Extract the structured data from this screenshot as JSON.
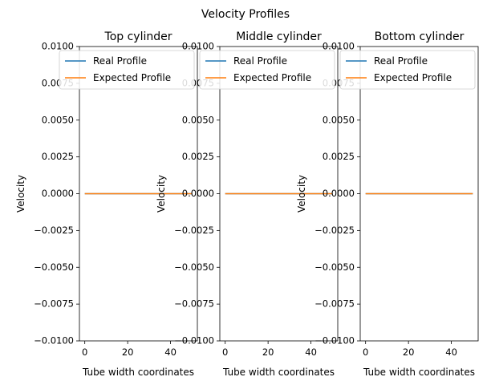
{
  "figure": {
    "suptitle": "Velocity Profiles"
  },
  "chart_data": [
    {
      "type": "line",
      "title": "Top cylinder",
      "xlabel": "Tube width coordinates",
      "ylabel": "Velocity",
      "xlim": [
        -2.5,
        52.5
      ],
      "ylim": [
        -0.01,
        0.01
      ],
      "xticks": [
        0,
        20,
        40
      ],
      "yticks": [
        -0.01,
        -0.0075,
        -0.005,
        -0.0025,
        0.0,
        0.0025,
        0.005,
        0.0075,
        0.01
      ],
      "ytick_labels": [
        "−0.0100",
        "−0.0075",
        "−0.0050",
        "−0.0025",
        "0.0000",
        "0.0025",
        "0.0050",
        "0.0075",
        "0.0100"
      ],
      "legend": "top-right",
      "series": [
        {
          "name": "Real Profile",
          "color": "#1f77b4",
          "x": [
            0,
            50
          ],
          "y": [
            0,
            0
          ]
        },
        {
          "name": "Expected Profile",
          "color": "#ff7f0e",
          "x": [
            0,
            50
          ],
          "y": [
            0,
            0
          ]
        }
      ]
    },
    {
      "type": "line",
      "title": "Middle cylinder",
      "xlabel": "Tube width coordinates",
      "ylabel": "Velocity",
      "xlim": [
        -2.5,
        52.5
      ],
      "ylim": [
        -0.01,
        0.01
      ],
      "xticks": [
        0,
        20,
        40
      ],
      "yticks": [
        -0.01,
        -0.0075,
        -0.005,
        -0.0025,
        0.0,
        0.0025,
        0.005,
        0.0075,
        0.01
      ],
      "ytick_labels": [
        "−0.0100",
        "−0.0075",
        "−0.0050",
        "−0.0025",
        "0.0000",
        "0.0025",
        "0.0050",
        "0.0075",
        "0.0100"
      ],
      "legend": "top-right",
      "series": [
        {
          "name": "Real Profile",
          "color": "#1f77b4",
          "x": [
            0,
            50
          ],
          "y": [
            0,
            0
          ]
        },
        {
          "name": "Expected Profile",
          "color": "#ff7f0e",
          "x": [
            0,
            50
          ],
          "y": [
            0,
            0
          ]
        }
      ]
    },
    {
      "type": "line",
      "title": "Bottom cylinder",
      "xlabel": "Tube width coordinates",
      "ylabel": "Velocity",
      "xlim": [
        -2.5,
        52.5
      ],
      "ylim": [
        -0.01,
        0.01
      ],
      "xticks": [
        0,
        20,
        40
      ],
      "yticks": [
        -0.01,
        -0.0075,
        -0.005,
        -0.0025,
        0.0,
        0.0025,
        0.005,
        0.0075,
        0.01
      ],
      "ytick_labels": [
        "−0.0100",
        "−0.0075",
        "−0.0050",
        "−0.0025",
        "0.0000",
        "0.0025",
        "0.0050",
        "0.0075",
        "0.0100"
      ],
      "legend": "top-right",
      "series": [
        {
          "name": "Real Profile",
          "color": "#1f77b4",
          "x": [
            0,
            50
          ],
          "y": [
            0,
            0
          ]
        },
        {
          "name": "Expected Profile",
          "color": "#ff7f0e",
          "x": [
            0,
            50
          ],
          "y": [
            0,
            0
          ]
        }
      ]
    }
  ]
}
